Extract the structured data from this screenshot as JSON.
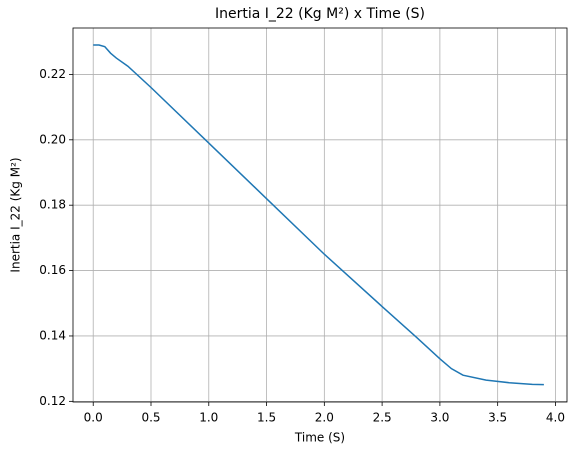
{
  "chart_data": {
    "type": "line",
    "title": "Inertia I_22 (Kg M²) x Time (S)",
    "x_label": "Time (S)",
    "y_label": "Inertia I_22 (Kg M²)",
    "x": [
      0,
      0.05,
      0.1,
      0.15,
      0.2,
      0.3,
      0.5,
      1.0,
      1.5,
      2.0,
      2.5,
      2.8,
      3.0,
      3.1,
      3.2,
      3.4,
      3.6,
      3.8,
      3.9
    ],
    "series": [
      {
        "name": "Inertia I_22",
        "color": "#1f77b4",
        "values": [
          0.229,
          0.229,
          0.2285,
          0.2265,
          0.225,
          0.2225,
          0.216,
          0.199,
          0.182,
          0.165,
          0.149,
          0.1395,
          0.133,
          0.13,
          0.128,
          0.1265,
          0.1257,
          0.1252,
          0.1251
        ]
      }
    ],
    "xlim": [
      -0.175,
      4.1
    ],
    "ylim": [
      0.1198,
      0.2342
    ],
    "xticks": [
      {
        "value": 0,
        "label": "0.0"
      },
      0.5,
      {
        "value": 1,
        "label": "1.0"
      },
      1.5,
      {
        "value": 2,
        "label": "2.0"
      },
      2.5,
      {
        "value": 3,
        "label": "3.0"
      },
      3.5,
      {
        "value": 4,
        "label": "4.0"
      }
    ],
    "yticks": [
      0.12,
      0.14,
      0.16,
      0.18,
      {
        "value": 0.2,
        "label": "0.20"
      },
      0.22
    ],
    "grid": true
  }
}
